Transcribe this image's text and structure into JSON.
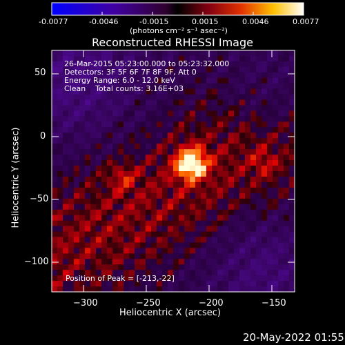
{
  "colorbar": {
    "tick_labels": [
      "-0.0077",
      "-0.0046",
      "-0.0015",
      "0.0015",
      "0.0046",
      "0.0077"
    ],
    "units": "(photons cm⁻² s⁻¹ asec⁻²)"
  },
  "plot": {
    "title": "Reconstructed RHESSI Image",
    "xlabel": "Heliocentric X (arcsec)",
    "ylabel": "Heliocentric Y (arcsec)",
    "x_ticks": [
      "−300",
      "−250",
      "−200",
      "−150"
    ],
    "y_ticks": [
      "50",
      "0",
      "−50",
      "−100"
    ]
  },
  "annotations": {
    "line1": "26-Mar-2015 05:23:00.000 to 05:23:32.000",
    "line2": "Detectors: 3F 5F 6F 7F 8F 9F, Att 0",
    "line3": "Energy Range: 6.0 - 12.0 keV",
    "line4": "Clean    Total counts: 3.16E+03",
    "peak": "Position of Peak = [-213,-22]"
  },
  "footer": {
    "date": "20-May-2022 01:55"
  },
  "image_data": {
    "x_range": [
      -326,
      -132
    ],
    "y_range": [
      -124,
      68
    ],
    "peak": [
      -213,
      -22
    ]
  }
}
